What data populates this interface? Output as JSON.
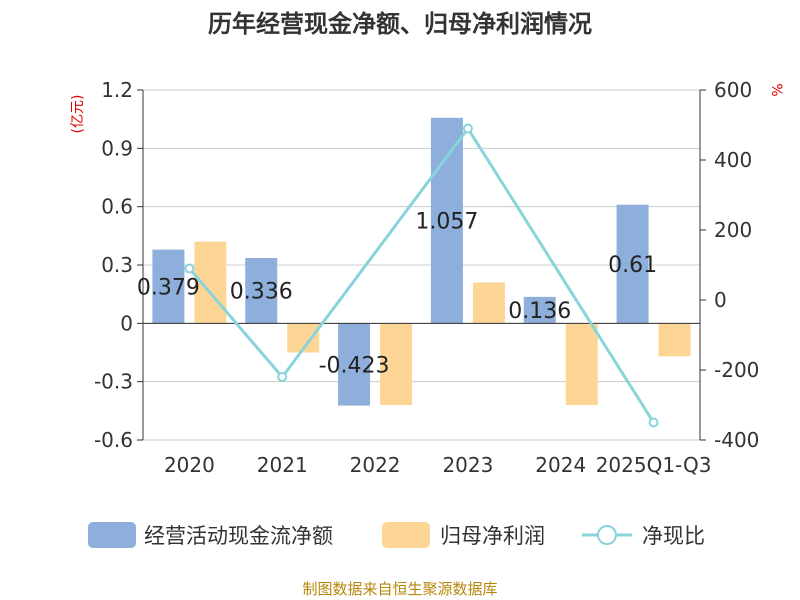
{
  "chart_data": {
    "type": "bar+line",
    "title": "历年经营现金净额、归母净利润情况",
    "categories": [
      "2020",
      "2021",
      "2022",
      "2023",
      "2024",
      "2025Q1-Q3"
    ],
    "series": [
      {
        "name": "经营活动现金流净额",
        "type": "bar",
        "axis": "left",
        "color": "#8eaedb",
        "values": [
          0.379,
          0.336,
          -0.423,
          1.057,
          0.136,
          0.61
        ],
        "labels": [
          "0.379",
          "0.336",
          "-0.423",
          "1.057",
          "0.136",
          "0.61"
        ]
      },
      {
        "name": "归母净利润",
        "type": "bar",
        "axis": "left",
        "color": "#fdd696",
        "values": [
          0.42,
          -0.15,
          -0.42,
          0.21,
          -0.42,
          -0.17
        ]
      },
      {
        "name": "净现比",
        "type": "line",
        "axis": "right",
        "color": "#88d4da",
        "values": [
          90,
          -220,
          null,
          490,
          null,
          -350
        ]
      }
    ],
    "left_axis": {
      "unit": "(亿元)",
      "ylim": [
        -0.6,
        1.2
      ],
      "ticks": [
        1.2,
        0.9,
        0.6,
        0.3,
        0,
        -0.3,
        -0.6
      ],
      "tick_labels": [
        "1.2",
        "0.9",
        "0.6",
        "0.3",
        "0",
        "-0.3",
        "-0.6"
      ]
    },
    "right_axis": {
      "unit": "%",
      "ylim": [
        -400,
        600
      ],
      "ticks": [
        600,
        400,
        200,
        0,
        -200,
        -400
      ],
      "tick_labels": [
        "600",
        "400",
        "200",
        "0",
        "-200",
        "-400"
      ]
    },
    "grid": true,
    "legend_position": "bottom",
    "source": "制图数据来自恒生聚源数据库"
  }
}
